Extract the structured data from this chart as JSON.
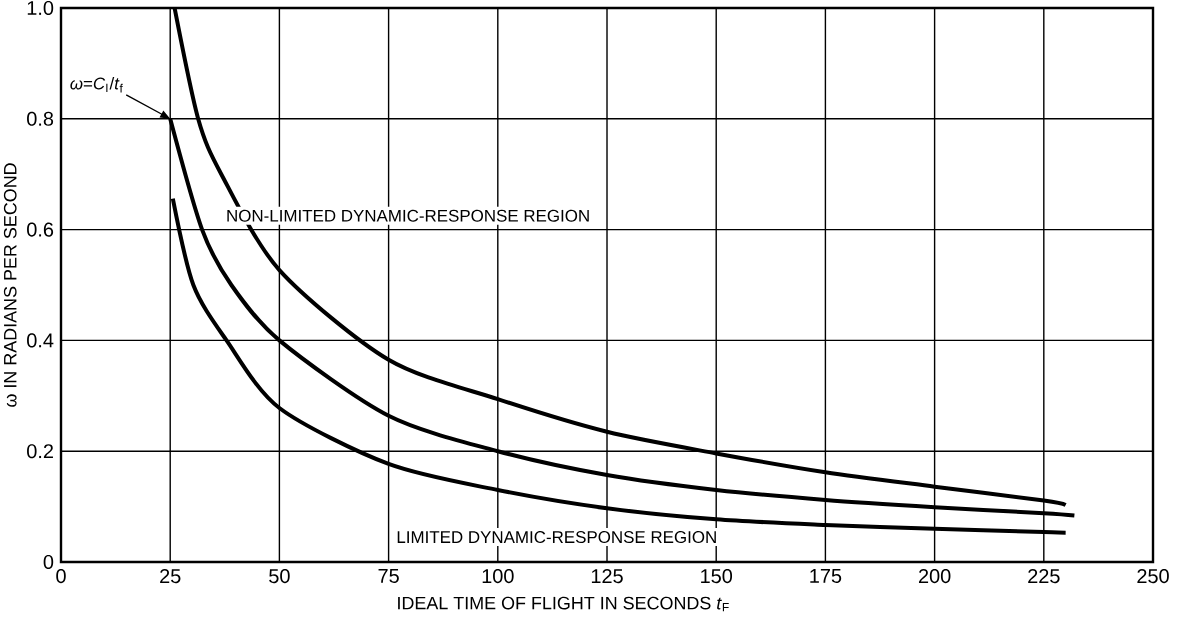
{
  "chart_data": {
    "type": "line",
    "xlabel": "IDEAL TIME OF FLIGHT IN SECONDS *t*$_{F}$",
    "ylabel": "ω IN RADIANS PER SECOND",
    "xlim": [
      0,
      250
    ],
    "ylim": [
      0,
      1.0
    ],
    "xticks": [
      0,
      25,
      50,
      75,
      100,
      125,
      150,
      175,
      200,
      225,
      250
    ],
    "yticks": [
      0,
      0.2,
      0.4,
      0.6,
      0.8,
      {
        "value": 1.0,
        "label": "1.0"
      }
    ],
    "grid": true,
    "marker": "none",
    "line_style": "solid",
    "series": [
      {
        "color": "#000000",
        "x": [
          26,
          31.4,
          36.7,
          50,
          75,
          100,
          125,
          150,
          175,
          200,
          225,
          230
        ],
        "values": [
          1.0,
          0.8,
          0.7,
          0.527,
          0.365,
          0.294,
          0.235,
          0.196,
          0.162,
          0.136,
          0.111,
          0.103
        ]
      },
      {
        "color": "#000000",
        "x": [
          25,
          32.3,
          39,
          50,
          75,
          100,
          125,
          150,
          175,
          200,
          225,
          232
        ],
        "values": [
          0.8,
          0.6,
          0.5,
          0.4,
          0.264,
          0.2,
          0.157,
          0.13,
          0.112,
          0.099,
          0.088,
          0.084
        ]
      },
      {
        "color": "#000000",
        "x": [
          25.6,
          30.3,
          37.9,
          50,
          75,
          100,
          125,
          150,
          175,
          200,
          225,
          230
        ],
        "values": [
          0.656,
          0.5,
          0.4,
          0.278,
          0.177,
          0.13,
          0.097,
          0.077,
          0.067,
          0.06,
          0.054,
          0.053
        ]
      }
    ],
    "annotations": [
      "*ω*=*C*$_{I}$/*t*$_{f}$",
      "NON-LIMITED DYNAMIC-RESPONSE REGION",
      "LIMITED DYNAMIC-RESPONSE REGION"
    ]
  }
}
